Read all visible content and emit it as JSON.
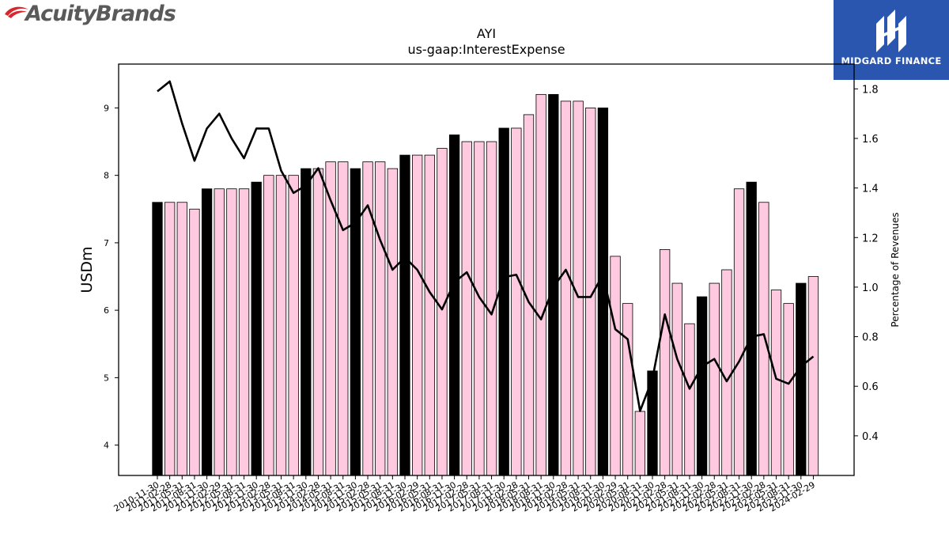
{
  "header": {
    "company_logo_text": "AcuityBrands",
    "company_logo_tm": "TM",
    "watermark_text": "MIDGARD FINANCE"
  },
  "colors": {
    "bar_black": "#000000",
    "bar_pink": "#ffc9e0",
    "line": "#000000",
    "midgard_blue": "#2a56b0",
    "acuity_red": "#d9262e"
  },
  "chart_data": {
    "type": "bar",
    "title": "AYI",
    "subtitle": "us-gaap:InterestExpense",
    "ylabel": "USDm",
    "ylabel_right": "Percentage of Revenues",
    "ylim": [
      3.55,
      9.65
    ],
    "ylim_right": [
      0.24,
      1.9
    ],
    "yticks": [
      "4",
      "5",
      "6",
      "7",
      "8",
      "9"
    ],
    "yticks_right": [
      "0.4",
      "0.6",
      "0.8",
      "1.0",
      "1.2",
      "1.4",
      "1.6",
      "1.8"
    ],
    "grid": false,
    "categories": [
      "2010-11-30",
      "2011-02-28",
      "2011-05-31",
      "2011-08-31",
      "2011-11-30",
      "2012-02-29",
      "2012-05-31",
      "2012-08-31",
      "2012-11-30",
      "2013-02-28",
      "2013-05-31",
      "2013-08-31",
      "2013-11-30",
      "2014-02-28",
      "2014-05-31",
      "2014-08-31",
      "2014-11-30",
      "2015-02-28",
      "2015-05-31",
      "2015-08-31",
      "2015-11-30",
      "2016-02-29",
      "2016-05-31",
      "2016-08-31",
      "2016-11-30",
      "2017-02-28",
      "2017-05-31",
      "2017-08-31",
      "2017-11-30",
      "2018-02-28",
      "2018-05-31",
      "2018-08-31",
      "2018-11-30",
      "2019-02-28",
      "2019-05-31",
      "2019-08-31",
      "2019-11-30",
      "2020-02-29",
      "2020-05-31",
      "2020-08-31",
      "2020-11-30",
      "2021-02-28",
      "2021-05-31",
      "2021-08-31",
      "2021-11-30",
      "2022-02-28",
      "2022-05-31",
      "2022-08-31",
      "2022-11-30",
      "2023-02-28",
      "2023-05-31",
      "2023-08-31",
      "2023-11-30",
      "2024-02-29"
    ],
    "series": [
      {
        "type": "bar",
        "axis": "left",
        "values": [
          7.6,
          7.6,
          7.6,
          7.5,
          7.8,
          7.8,
          7.8,
          7.8,
          7.9,
          8.0,
          8.0,
          8.0,
          8.1,
          8.1,
          8.2,
          8.2,
          8.1,
          8.2,
          8.2,
          8.1,
          8.3,
          8.3,
          8.3,
          8.4,
          8.6,
          8.5,
          8.5,
          8.5,
          8.7,
          8.7,
          8.9,
          9.2,
          9.2,
          9.1,
          9.1,
          9.0,
          9.0,
          6.8,
          6.1,
          4.5,
          5.1,
          6.9,
          6.4,
          5.8,
          6.2,
          6.4,
          6.6,
          7.8,
          7.9,
          7.6,
          6.3,
          6.1,
          6.4,
          6.5
        ],
        "fiscal_year_end": [
          true,
          false,
          false,
          false,
          true,
          false,
          false,
          false,
          true,
          false,
          false,
          false,
          true,
          false,
          false,
          false,
          true,
          false,
          false,
          false,
          true,
          false,
          false,
          false,
          true,
          false,
          false,
          false,
          true,
          false,
          false,
          false,
          true,
          false,
          false,
          false,
          true,
          false,
          false,
          false,
          true,
          false,
          false,
          false,
          true,
          false,
          false,
          false,
          true,
          false,
          false,
          false,
          true,
          false
        ]
      },
      {
        "type": "line",
        "axis": "right",
        "values": [
          1.79,
          1.83,
          1.66,
          1.51,
          1.64,
          1.7,
          1.6,
          1.52,
          1.64,
          1.64,
          1.47,
          1.38,
          1.41,
          1.48,
          1.35,
          1.23,
          1.26,
          1.33,
          1.19,
          1.07,
          1.12,
          1.07,
          0.98,
          0.91,
          1.02,
          1.06,
          0.96,
          0.89,
          1.04,
          1.05,
          0.94,
          0.87,
          1.0,
          1.07,
          0.96,
          0.96,
          1.05,
          0.83,
          0.79,
          0.5,
          0.63,
          0.89,
          0.71,
          0.59,
          0.68,
          0.71,
          0.62,
          0.7,
          0.8,
          0.81,
          0.63,
          0.61,
          0.68,
          0.72
        ]
      }
    ]
  }
}
